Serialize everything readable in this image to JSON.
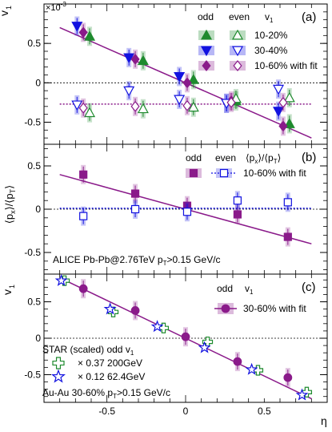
{
  "colors": {
    "green": "#1e8a2e",
    "blue": "#1212e0",
    "purple": "#8a1a8a",
    "black": "#000000"
  },
  "chart_data": [
    {
      "type": "scatter",
      "panel_label": "(a)",
      "ylabel": "v",
      "ylabel_sub": "1",
      "exponent_label": "×10",
      "exponent_power": "-3",
      "xlim": [
        -0.9,
        0.9
      ],
      "ylim": [
        -0.78,
        1.0
      ],
      "yticks": [
        {
          "v": 0.5,
          "label": "0.5"
        },
        {
          "v": 0,
          "label": "0"
        },
        {
          "v": -0.5,
          "label": "-0.5"
        }
      ],
      "legend": {
        "col_odd": "odd",
        "col_even": "even",
        "col_v1": "v",
        "col_v1_sub": "1",
        "rows": [
          "10-20%",
          "30-40%",
          "10-60% with fit"
        ]
      },
      "series": [
        {
          "name": "10-20% odd",
          "marker": "tri-up",
          "filled": true,
          "color": "green",
          "x": [
            -0.61,
            -0.27,
            0.05,
            0.32,
            0.66
          ],
          "y": [
            0.59,
            0.28,
            0.04,
            -0.23,
            -0.52
          ]
        },
        {
          "name": "30-40% odd",
          "marker": "tri-down",
          "filled": true,
          "color": "blue",
          "x": [
            -0.69,
            -0.36,
            -0.04,
            0.26,
            0.59
          ],
          "y": [
            0.72,
            0.32,
            0.08,
            -0.26,
            -0.36
          ]
        },
        {
          "name": "10-60% odd",
          "marker": "diamond",
          "filled": true,
          "color": "purple",
          "x": [
            -0.65,
            -0.32,
            0.01,
            0.29,
            0.62
          ],
          "y": [
            0.64,
            0.3,
            0.0,
            -0.23,
            -0.55
          ]
        },
        {
          "name": "10-20% even",
          "marker": "tri-up",
          "filled": false,
          "color": "green",
          "x": [
            -0.61,
            -0.27,
            0.05,
            0.32,
            0.66
          ],
          "y": [
            -0.38,
            -0.33,
            -0.31,
            -0.2,
            -0.19
          ]
        },
        {
          "name": "30-40% even",
          "marker": "tri-down",
          "filled": false,
          "color": "blue",
          "x": [
            -0.69,
            -0.36,
            -0.04,
            0.26,
            0.59
          ],
          "y": [
            -0.28,
            -0.1,
            -0.21,
            -0.26,
            -0.08
          ]
        },
        {
          "name": "10-60% even",
          "marker": "diamond",
          "filled": false,
          "color": "purple",
          "x": [
            -0.65,
            -0.32,
            0.01,
            0.29,
            0.62
          ],
          "y": [
            -0.32,
            -0.3,
            -0.29,
            -0.25,
            -0.25
          ]
        }
      ],
      "fits": [
        {
          "color": "purple",
          "style": "solid",
          "x": [
            -0.8,
            0.8
          ],
          "y": [
            0.7,
            -0.7
          ]
        },
        {
          "color": "purple",
          "style": "dotted",
          "x": [
            -0.8,
            0.8
          ],
          "y": [
            -0.27,
            -0.27
          ]
        }
      ]
    },
    {
      "type": "scatter",
      "panel_label": "(b)",
      "ylabel": "⟨p",
      "ylabel_sub": "x",
      "ylabel_mid": "⟩/⟨p",
      "ylabel_sub2": "T",
      "ylabel_end": "⟩",
      "xlim": [
        -0.9,
        0.9
      ],
      "ylim": [
        -0.75,
        0.75
      ],
      "yticks": [
        {
          "v": 0.5,
          "label": "0.5"
        },
        {
          "v": 0,
          "label": "0"
        },
        {
          "v": -0.5,
          "label": "-0.5"
        }
      ],
      "legend": {
        "col_odd": "odd",
        "col_even": "even",
        "col_px": "⟨p",
        "col_px_sub": "x",
        "col_px_mid": "⟩/⟨p",
        "col_px_sub2": "T",
        "col_px_end": "⟩",
        "rows": [
          "10-60% with fit"
        ]
      },
      "annotation": "ALICE Pb-Pb@2.76TeV  p",
      "annotation_sub": "T",
      "annotation_end": ">0.15 GeV/c",
      "series": [
        {
          "name": "10-60% odd",
          "marker": "square",
          "filled": true,
          "color": "purple",
          "x": [
            -0.65,
            -0.32,
            0.01,
            0.33,
            0.65
          ],
          "y": [
            0.4,
            0.18,
            0.04,
            -0.06,
            -0.32
          ]
        },
        {
          "name": "10-60% even",
          "marker": "square",
          "filled": false,
          "color": "blue",
          "x": [
            -0.65,
            -0.32,
            0.01,
            0.33,
            0.65
          ],
          "y": [
            -0.08,
            0.0,
            -0.03,
            0.1,
            0.08
          ]
        }
      ],
      "fits": [
        {
          "color": "purple",
          "style": "solid",
          "x": [
            -0.8,
            0.8
          ],
          "y": [
            0.4,
            -0.4
          ]
        },
        {
          "color": "blue",
          "style": "dotted",
          "x": [
            -0.8,
            0.8
          ],
          "y": [
            0.01,
            0.01
          ]
        }
      ]
    },
    {
      "type": "scatter",
      "panel_label": "(c)",
      "ylabel": "v",
      "ylabel_sub": "1",
      "xlabel": "η",
      "xlim": [
        -0.9,
        0.9
      ],
      "ylim": [
        -0.88,
        0.88
      ],
      "yticks": [
        {
          "v": 0.5,
          "label": "0.5"
        },
        {
          "v": 0,
          "label": "0"
        },
        {
          "v": -0.5,
          "label": "-0.5"
        }
      ],
      "xticks": [
        {
          "v": -0.5,
          "label": "-0.5"
        },
        {
          "v": 0,
          "label": "0"
        },
        {
          "v": 0.5,
          "label": "0.5"
        }
      ],
      "legend": {
        "col_odd": "odd",
        "col_v1": "v",
        "col_v1_sub": "1",
        "rows": [
          "30-60% with fit"
        ]
      },
      "star_legend": {
        "title": "STAR  (scaled) odd v",
        "title_sub": "1",
        "rows": [
          "× 0.37  200GeV",
          "× 0.12  62.4GeV"
        ],
        "footer": "Au-Au 30-60% p",
        "footer_sub": "T",
        "footer_end": ">0.15 GeV/c"
      },
      "series": [
        {
          "name": "30-60% odd",
          "marker": "circle",
          "filled": true,
          "color": "purple",
          "x": [
            -0.65,
            -0.32,
            0.0,
            0.33,
            0.65
          ],
          "y": [
            0.68,
            0.38,
            0.02,
            -0.32,
            -0.54
          ]
        },
        {
          "name": "× 0.37  200GeV",
          "marker": "cross",
          "filled": false,
          "color": "green",
          "x": [
            -0.77,
            -0.46,
            -0.14,
            0.14,
            0.46,
            0.77
          ],
          "y": [
            0.79,
            0.36,
            0.14,
            -0.05,
            -0.44,
            -0.74
          ]
        },
        {
          "name": "× 0.12  62.4GeV",
          "marker": "star",
          "filled": false,
          "color": "blue",
          "x": [
            -0.79,
            -0.48,
            -0.18,
            0.12,
            0.42,
            0.74
          ],
          "y": [
            0.79,
            0.4,
            0.16,
            -0.13,
            -0.43,
            -0.78
          ]
        }
      ],
      "fits": [
        {
          "color": "purple",
          "style": "solid",
          "x": [
            -0.8,
            0.8
          ],
          "y": [
            0.83,
            -0.83
          ]
        }
      ]
    }
  ]
}
